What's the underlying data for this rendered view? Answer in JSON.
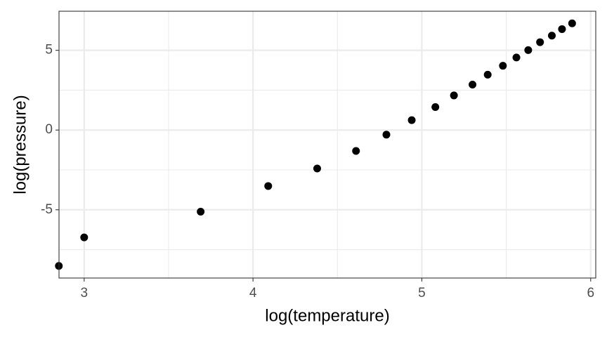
{
  "chart_data": {
    "type": "scatter",
    "x_label": "log(temperature)",
    "y_label": "log(pressure)",
    "series": [
      {
        "color": "#000000",
        "x": [
          2.85,
          3.0,
          3.69,
          4.09,
          4.38,
          4.61,
          4.79,
          4.94,
          5.08,
          5.19,
          5.3,
          5.39,
          5.48,
          5.56,
          5.63,
          5.7,
          5.77,
          5.83,
          5.89
        ],
        "values": [
          -8.52,
          -6.73,
          -5.12,
          -3.51,
          -2.41,
          -1.31,
          -0.29,
          0.62,
          1.44,
          2.17,
          2.85,
          3.47,
          4.03,
          4.55,
          5.01,
          5.51,
          5.92,
          6.33,
          6.69
        ]
      }
    ],
    "xlim": [
      2.851,
      6.03
    ],
    "ylim": [
      -9.28,
      7.45
    ],
    "xticks": [
      3,
      4,
      5,
      6
    ],
    "yticks": [
      -5,
      0,
      5
    ],
    "minor_xticks": [
      3.5,
      4.5,
      5.5
    ],
    "minor_yticks": [
      -7.5,
      -2.5,
      2.5
    ],
    "grid": true
  }
}
